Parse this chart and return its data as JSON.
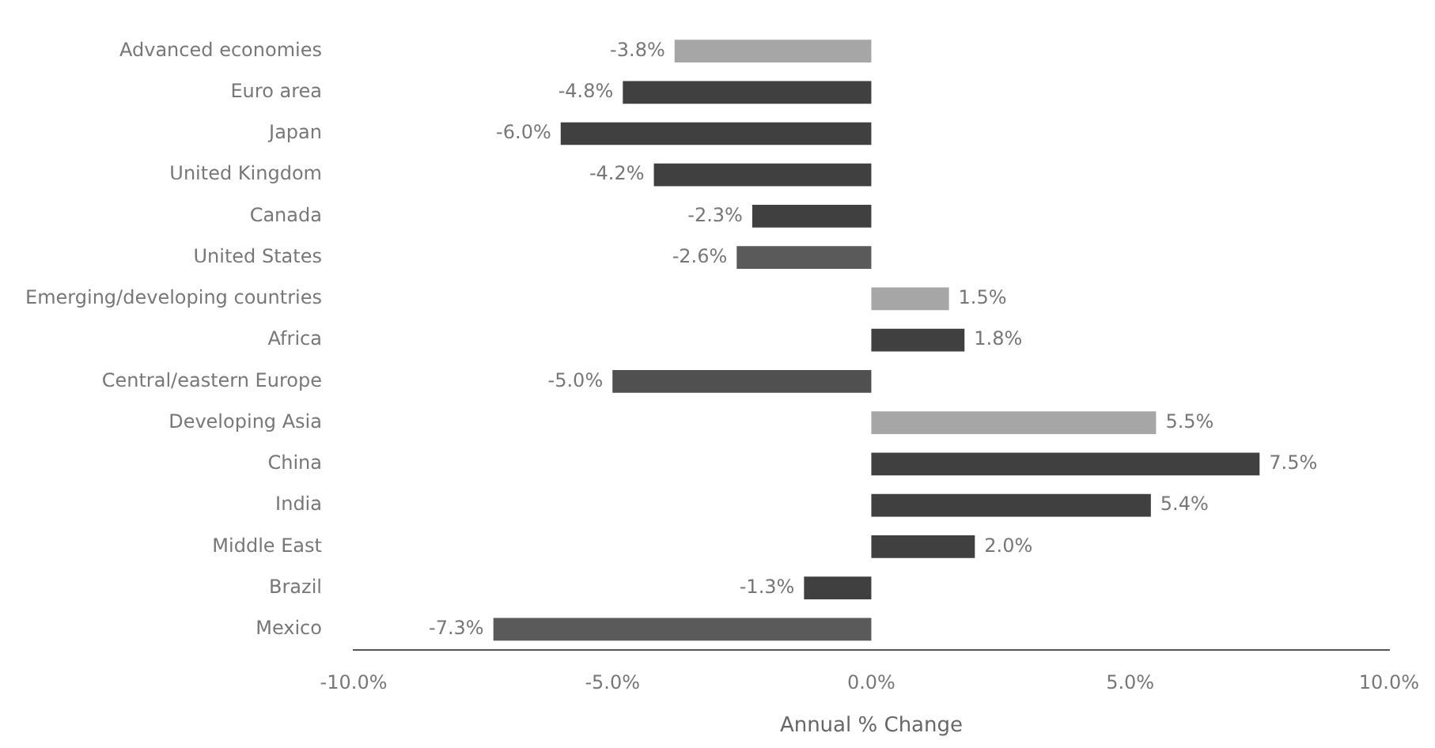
{
  "chart_data": {
    "type": "bar",
    "orientation": "horizontal",
    "xlabel": "Annual % Change",
    "categories": [
      "Advanced economies",
      "Euro area",
      "Japan",
      "United Kingdom",
      "Canada",
      "United States",
      "Emerging/developing countries",
      "Africa",
      "Central/eastern Europe",
      "Developing Asia",
      "China",
      "India",
      "Middle East",
      "Brazil",
      "Mexico"
    ],
    "values": [
      -3.8,
      -4.8,
      -6.0,
      -4.2,
      -2.3,
      -2.6,
      1.5,
      1.8,
      -5.0,
      5.5,
      7.5,
      5.4,
      2.0,
      -1.3,
      -7.3
    ],
    "colors": [
      "#a6a6a6",
      "#404040",
      "#404040",
      "#404040",
      "#404040",
      "#5a5a5a",
      "#a6a6a6",
      "#404040",
      "#505050",
      "#a6a6a6",
      "#404040",
      "#404040",
      "#404040",
      "#404040",
      "#5a5a5a"
    ],
    "value_labels": [
      "-3.8%",
      "-4.8%",
      "-6.0%",
      "-4.2%",
      "-2.3%",
      "-2.6%",
      "1.5%",
      "1.8%",
      "-5.0%",
      "5.5%",
      "7.5%",
      "5.4%",
      "2.0%",
      "-1.3%",
      "-7.3%"
    ],
    "xlim": [
      -10,
      10
    ],
    "xticks": [
      {
        "value": -10,
        "label": "-10.0%"
      },
      {
        "value": -5,
        "label": "-5.0%"
      },
      {
        "value": 0,
        "label": "0.0%"
      },
      {
        "value": 5,
        "label": "5.0%"
      },
      {
        "value": 10,
        "label": "10.0%"
      }
    ],
    "grid": false,
    "legend": false
  }
}
